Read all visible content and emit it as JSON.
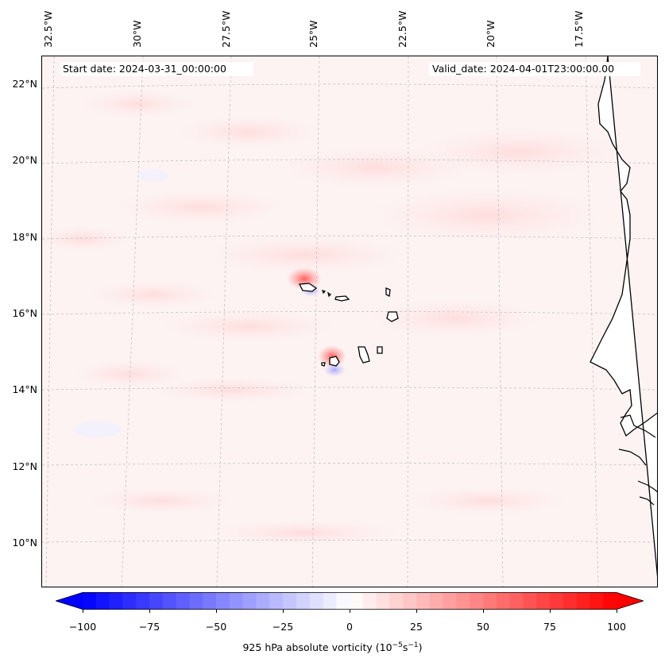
{
  "map": {
    "start_date": "Start date: 2024-03-31_00:00:00",
    "valid_date": "Valid_date: 2024-04-01T23:00:00.00",
    "field_name": "925 hPa absolute vorticity",
    "units_base": "(10",
    "units_exp1": "−5",
    "units_mid": "s",
    "units_exp2": "−1",
    "units_close": ")",
    "longitude_labels": [
      "32.5°W",
      "30°W",
      "27.5°W",
      "25°W",
      "22.5°W",
      "20°W",
      "17.5°W"
    ],
    "latitude_labels": [
      "22°N",
      "20°N",
      "18°N",
      "16°N",
      "14°N",
      "12°N",
      "10°N"
    ],
    "colorbar": {
      "min": -100,
      "max": 100,
      "extend": "both",
      "tick_labels": [
        "−100",
        "−75",
        "−50",
        "−25",
        "0",
        "25",
        "50",
        "75",
        "100"
      ],
      "colormap": "bwr"
    },
    "colors": {
      "background_field": "#fdf5f5",
      "land": "#ffffff",
      "coast": "#000000",
      "grid": "#bbbbbb"
    }
  }
}
